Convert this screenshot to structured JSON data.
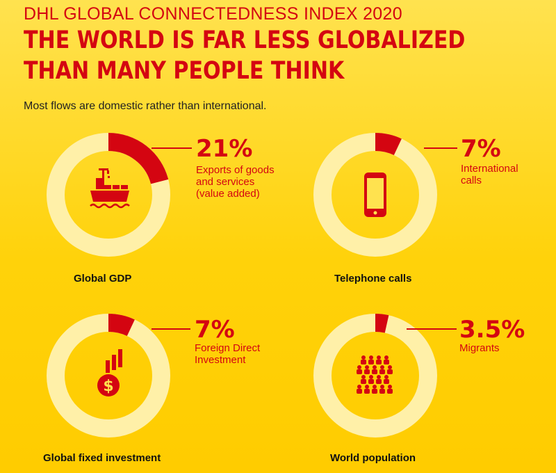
{
  "header": {
    "kicker": "DHL GLOBAL CONNECTEDNESS INDEX 2020",
    "headline_line1": "THE WORLD IS FAR LESS GLOBALIZED",
    "headline_line2": "THAN MANY PEOPLE THINK",
    "intro": "Most flows are domestic rather than international."
  },
  "colors": {
    "accent_red": "#D40511",
    "ring_base": "#FFF0A8",
    "background": "#FFCC00"
  },
  "chart_data": [
    {
      "type": "pie",
      "category": "Global GDP",
      "value": 21,
      "value_label": "21%",
      "description": "Exports of goods and services (value added)",
      "description_lines": [
        "Exports of goods",
        "and services",
        "(value added)"
      ],
      "icon": "cargo-ship-icon"
    },
    {
      "type": "pie",
      "category": "Telephone calls",
      "value": 7,
      "value_label": "7%",
      "description": "International calls",
      "description_lines": [
        "International",
        "calls"
      ],
      "icon": "smartphone-icon"
    },
    {
      "type": "pie",
      "category": "Global fixed investment",
      "value": 7,
      "value_label": "7%",
      "description": "Foreign Direct Investment",
      "description_lines": [
        "Foreign Direct",
        "Investment"
      ],
      "icon": "investment-growth-icon"
    },
    {
      "type": "pie",
      "category": "World population",
      "value": 3.5,
      "value_label": "3.5%",
      "description": "Migrants",
      "description_lines": [
        "Migrants"
      ],
      "icon": "people-group-icon"
    }
  ]
}
